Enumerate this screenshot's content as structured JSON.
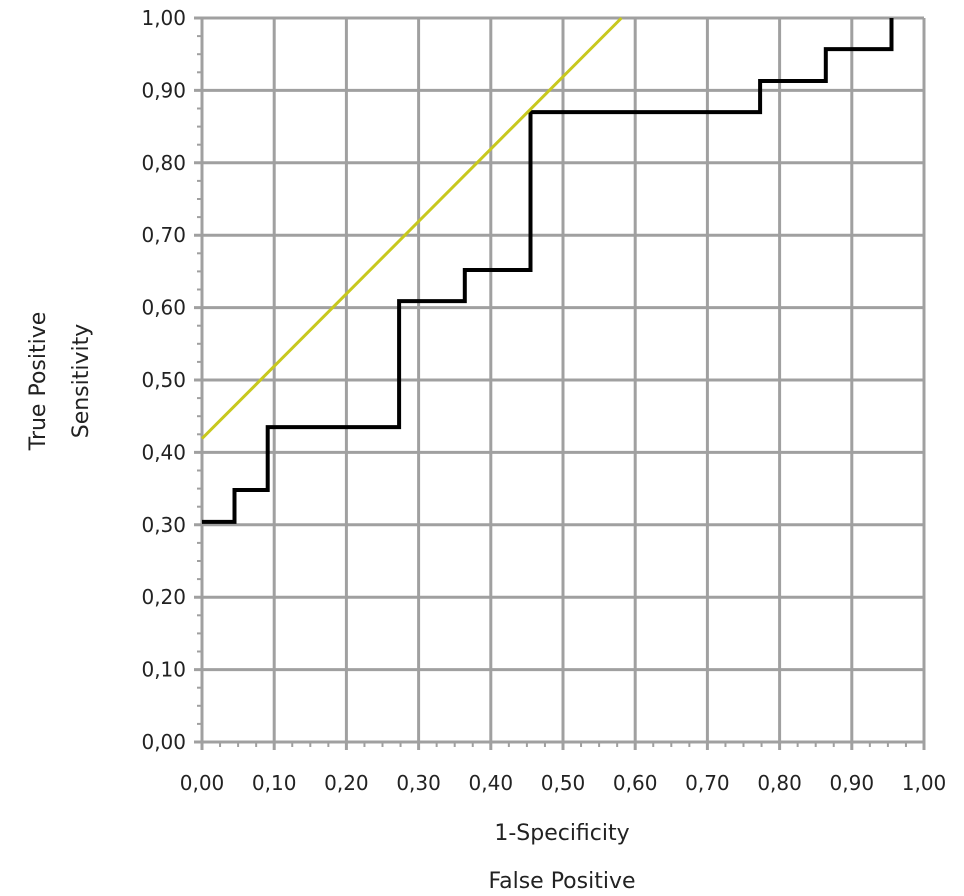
{
  "chart_data": {
    "type": "line",
    "title": "",
    "xlabel": "1-Specificity",
    "xlabel2": "False Positive",
    "ylabel": "Sensitivity",
    "ylabel2": "True Positive",
    "xlim": [
      0,
      1
    ],
    "ylim": [
      0,
      1
    ],
    "x_ticks": [
      "0,00",
      "0,10",
      "0,20",
      "0,30",
      "0,40",
      "0,50",
      "0,60",
      "0,70",
      "0,80",
      "0,90",
      "1,00"
    ],
    "y_ticks": [
      "0,00",
      "0,10",
      "0,20",
      "0,30",
      "0,40",
      "0,50",
      "0,60",
      "0,70",
      "0,80",
      "0,90",
      "1,00"
    ],
    "grid": true,
    "series": [
      {
        "style": "step",
        "color": "#000000",
        "points": [
          [
            0.0,
            0.304
          ],
          [
            0.045,
            0.304
          ],
          [
            0.045,
            0.348
          ],
          [
            0.091,
            0.348
          ],
          [
            0.091,
            0.435
          ],
          [
            0.273,
            0.435
          ],
          [
            0.273,
            0.609
          ],
          [
            0.364,
            0.609
          ],
          [
            0.364,
            0.652
          ],
          [
            0.455,
            0.652
          ],
          [
            0.455,
            0.87
          ],
          [
            0.773,
            0.87
          ],
          [
            0.773,
            0.913
          ],
          [
            0.864,
            0.913
          ],
          [
            0.864,
            0.957
          ],
          [
            0.955,
            0.957
          ],
          [
            0.955,
            1.0
          ]
        ]
      },
      {
        "style": "line",
        "color": "#c8c81e",
        "points": [
          [
            0.0,
            0.419
          ],
          [
            0.581,
            1.0
          ]
        ]
      }
    ]
  }
}
